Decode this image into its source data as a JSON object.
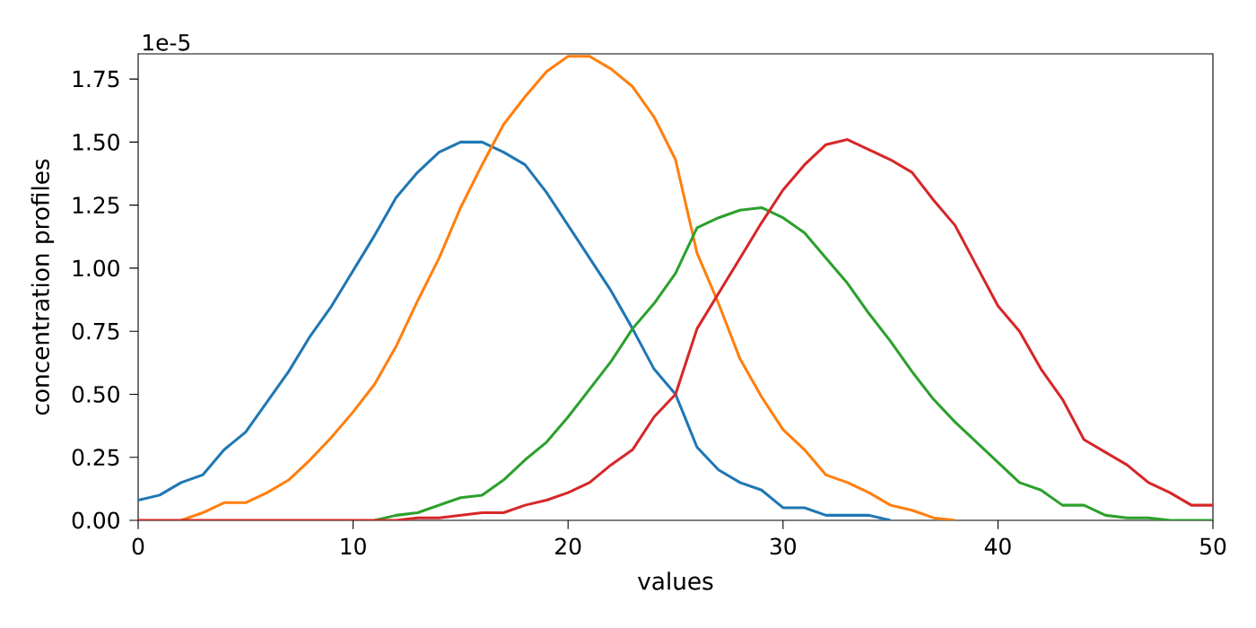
{
  "chart_data": {
    "type": "line",
    "xlabel": "values",
    "ylabel": "concentration profiles",
    "annotations": [
      "1e-5"
    ],
    "x": [
      0,
      1,
      2,
      3,
      4,
      5,
      6,
      7,
      8,
      9,
      10,
      11,
      12,
      13,
      14,
      15,
      16,
      17,
      18,
      19,
      20,
      21,
      22,
      23,
      24,
      25,
      26,
      27,
      28,
      29,
      30,
      31,
      32,
      33,
      34,
      35,
      36,
      37,
      38,
      39,
      40,
      41,
      42,
      43,
      44,
      45,
      46,
      47,
      48,
      49,
      50
    ],
    "xlim": [
      0,
      50
    ],
    "xticks": [
      0,
      10,
      20,
      30,
      40,
      50
    ],
    "ylim": [
      0,
      1.85
    ],
    "yticks": [
      {
        "value": 0,
        "label": "0.00"
      },
      {
        "value": 0.25,
        "label": "0.25"
      },
      {
        "value": 0.5,
        "label": "0.50"
      },
      {
        "value": 0.75,
        "label": "0.75"
      },
      {
        "value": 1.0,
        "label": "1.00"
      },
      {
        "value": 1.25,
        "label": "1.25"
      },
      {
        "value": 1.5,
        "label": "1.50"
      },
      {
        "value": 1.75,
        "label": "1.75"
      }
    ],
    "series": [
      {
        "color": "#1f77b4",
        "values": [
          0.08,
          0.1,
          0.15,
          0.18,
          0.28,
          0.35,
          0.47,
          0.59,
          0.73,
          0.85,
          0.99,
          1.13,
          1.28,
          1.38,
          1.46,
          1.5,
          1.5,
          1.46,
          1.41,
          1.3,
          1.17,
          1.04,
          0.91,
          0.76,
          0.6,
          0.5,
          0.29,
          0.2,
          0.15,
          0.12,
          0.05,
          0.05,
          0.02,
          0.02,
          0.02,
          0.0,
          null,
          null,
          null,
          null,
          null,
          null,
          null,
          null,
          null,
          null,
          null,
          null,
          null,
          null,
          null
        ]
      },
      {
        "color": "#ff7f0e",
        "values": [
          null,
          null,
          0,
          0.03,
          0.07,
          0.07,
          0.11,
          0.16,
          0.24,
          0.33,
          0.43,
          0.54,
          0.69,
          0.87,
          1.04,
          1.24,
          1.41,
          1.57,
          1.68,
          1.78,
          1.84,
          1.84,
          1.79,
          1.72,
          1.6,
          1.43,
          1.06,
          0.86,
          0.64,
          0.49,
          0.36,
          0.28,
          0.18,
          0.15,
          0.11,
          0.06,
          0.04,
          0.01,
          0,
          null,
          null,
          null,
          null,
          null,
          null,
          null,
          null,
          null,
          null,
          null,
          null
        ]
      },
      {
        "color": "#2ca02c",
        "values": [
          null,
          null,
          null,
          null,
          null,
          null,
          null,
          null,
          null,
          null,
          null,
          0,
          0.02,
          0.03,
          0.06,
          0.09,
          0.1,
          0.16,
          0.24,
          0.31,
          0.41,
          0.52,
          0.63,
          0.76,
          0.86,
          0.98,
          1.16,
          1.2,
          1.23,
          1.24,
          1.2,
          1.14,
          1.04,
          0.94,
          0.82,
          0.71,
          0.59,
          0.48,
          0.39,
          0.31,
          0.23,
          0.15,
          0.12,
          0.06,
          0.06,
          0.02,
          0.01,
          0.01,
          0,
          0,
          0
        ]
      },
      {
        "color": "#d62728",
        "values": [
          0,
          0,
          0,
          0,
          0,
          0,
          0,
          0,
          0,
          0,
          0,
          0,
          0,
          0.01,
          0.01,
          0.02,
          0.03,
          0.03,
          0.06,
          0.08,
          0.11,
          0.15,
          0.22,
          0.28,
          0.41,
          0.5,
          0.76,
          0.9,
          1.04,
          1.18,
          1.31,
          1.41,
          1.49,
          1.51,
          1.47,
          1.43,
          1.38,
          1.27,
          1.17,
          1.01,
          0.85,
          0.75,
          0.6,
          0.48,
          0.32,
          0.27,
          0.22,
          0.15,
          0.11,
          0.06,
          0.06
        ]
      }
    ]
  }
}
